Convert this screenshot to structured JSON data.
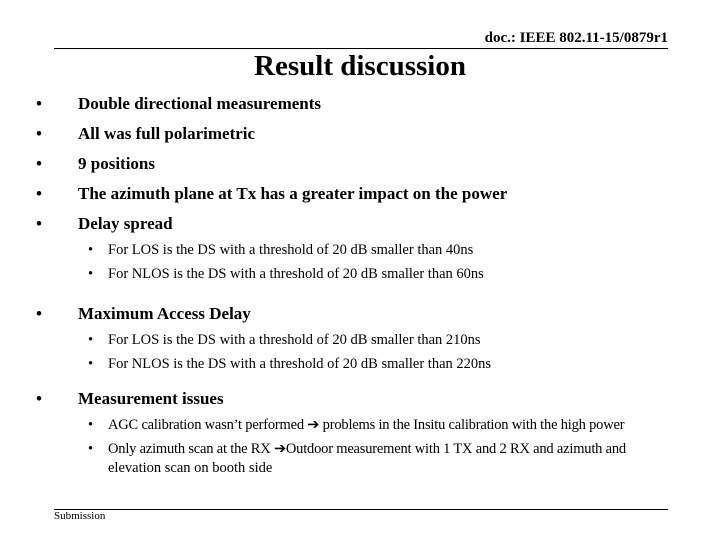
{
  "header": {
    "doc_id": "doc.: IEEE 802.11-15/0879r1"
  },
  "title": "Result discussion",
  "bullets": [
    {
      "text": "Double directional measurements"
    },
    {
      "text": "All was full polarimetric"
    },
    {
      "text": "9 positions"
    },
    {
      "text": "The azimuth plane at Tx has a greater impact on the power"
    },
    {
      "text": "Delay spread",
      "sub": [
        "For LOS is the DS with a threshold of 20 dB smaller than 40ns",
        "For NLOS is the DS with a threshold of 20 dB smaller than 60ns"
      ]
    },
    {
      "text": "Maximum Access Delay",
      "sub": [
        "For LOS is the DS with a threshold of 20 dB smaller than 210ns",
        "For NLOS is the DS with a threshold of 20 dB smaller than 220ns"
      ]
    },
    {
      "text": "Measurement issues",
      "sub": [
        "AGC calibration wasn’t performed ➔ problems in the Insitu calibration with the high power",
        "Only azimuth scan at the RX ➔Outdoor measurement with 1 TX and 2 RX and azimuth and",
        "elevation scan on booth side"
      ]
    }
  ],
  "bullet_glyph": "•",
  "footer": {
    "label": "Submission"
  }
}
